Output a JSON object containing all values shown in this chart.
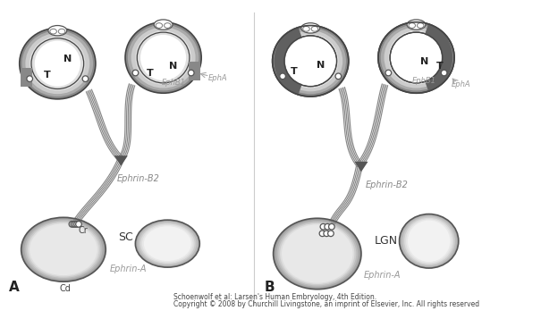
{
  "bg_color": "#ffffff",
  "footnote1": "Schoenwolf et al: Larsen's Human Embryology, 4th Edition.",
  "footnote2": "Copyright © 2008 by Churchill Livingstone, an imprint of Elsevier, Inc. All rights reserved",
  "label_A": "A",
  "label_B": "B",
  "label_SC": "SC",
  "label_LGN": "LGN",
  "label_Cr": "Cr",
  "label_Cd": "Cd",
  "label_EphrinA_A": "Ephrin-A",
  "label_EphrinA_B": "Ephrin-A",
  "label_EphrinB2_A": "Ephrin-B2",
  "label_EphrinB2_B": "Ephrin-B2",
  "label_EphA_A": "EphA",
  "label_EphA_B": "EphA",
  "label_EphB1_A": "EphB1",
  "label_EphB1_B": "EphB1",
  "label_N": "N",
  "label_T": "T"
}
